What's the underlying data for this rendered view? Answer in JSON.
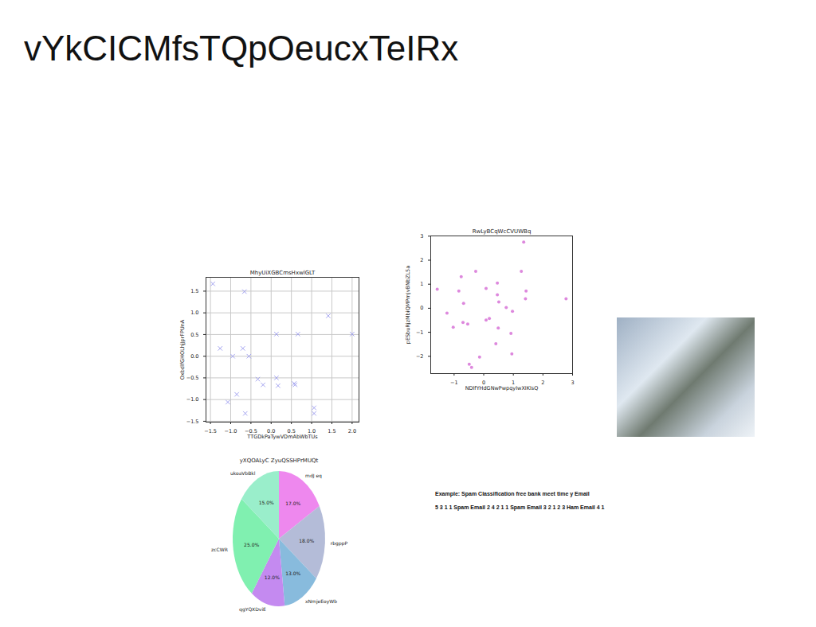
{
  "title": "vYkCICMfsTQpOeucxTeIRx",
  "chart_data": [
    {
      "type": "scatter",
      "title": "MhyUiXGBCmsHxwlGLT",
      "xlabel": "TTGDkPaTywVDmAbWbTUs",
      "ylabel": "OxbdlfGHOLhjJprFPUnA",
      "x": [
        -1.44,
        -1.26,
        -1.07,
        -0.95,
        -0.85,
        -0.7,
        -0.66,
        -0.64,
        -0.55,
        -0.33,
        -0.2,
        0.13,
        0.13,
        0.17,
        0.57,
        0.59,
        0.66,
        1.06,
        1.06,
        1.41,
        2.0
      ],
      "values": [
        1.67,
        0.18,
        -1.06,
        0.0,
        -0.88,
        0.18,
        1.49,
        -1.32,
        0.0,
        -0.53,
        -0.66,
        0.51,
        -0.5,
        -0.68,
        -0.63,
        -0.66,
        0.51,
        -1.19,
        -1.32,
        0.93,
        0.51
      ],
      "color": "#9a9aee",
      "marker": "x",
      "xlim": [
        -1.61,
        2.17
      ],
      "xticks": [
        {
          "value": -1.5,
          "label": "−1.5"
        },
        {
          "value": -1.0,
          "label": "−1.0"
        },
        {
          "value": -0.5,
          "label": "−0.5"
        },
        {
          "value": 0,
          "label": "0.0"
        },
        {
          "value": 0.5,
          "label": "0.5"
        },
        {
          "value": 1.0,
          "label": "1.0"
        },
        {
          "value": 1.5,
          "label": "1.5"
        },
        {
          "value": 2.0,
          "label": "2.0"
        }
      ],
      "ylim": [
        -1.52,
        1.82
      ],
      "yticks": [
        {
          "value": -1.5,
          "label": "−1.5"
        },
        {
          "value": -1.0,
          "label": "−1.0"
        },
        {
          "value": -0.5,
          "label": "−0.5"
        },
        {
          "value": 0,
          "label": "0.0"
        },
        {
          "value": 0.5,
          "label": "0.5"
        },
        {
          "value": 1.0,
          "label": "1.0"
        },
        {
          "value": 1.5,
          "label": "1.5"
        }
      ],
      "grid": true
    },
    {
      "type": "scatter",
      "title": "RwLyBCqWcCVUWBq",
      "xlabel": "NDlfYHdGNwPwpqyIwXIKlsQ",
      "ylabel": "pESbuRjzMbiQMPrnJvBNbZL5a",
      "x": [
        -1.57,
        -1.24,
        -1.03,
        -0.84,
        -0.76,
        -0.68,
        -0.7,
        -0.54,
        -0.49,
        -0.41,
        -0.27,
        -0.14,
        0.08,
        0.08,
        0.19,
        0.46,
        0.46,
        0.51,
        0.49,
        0.41,
        0.76,
        0.92,
        0.95,
        0.97,
        1.27,
        1.35,
        1.41,
        1.43,
        2.78
      ],
      "values": [
        0.79,
        -0.2,
        -0.79,
        0.72,
        1.31,
        0.2,
        -0.59,
        -0.66,
        -2.33,
        -2.46,
        1.54,
        -2.03,
        0.82,
        -0.49,
        -0.43,
        1.05,
        0.56,
        0.26,
        -0.82,
        -1.48,
        0.03,
        -1.05,
        -1.9,
        -0.13,
        1.54,
        2.75,
        0.39,
        0.72,
        0.39
      ],
      "color": "#dd88dd",
      "marker": "o",
      "xlim": [
        -1.79,
        3.0
      ],
      "xticks": [
        -1,
        0,
        1,
        2,
        3
      ],
      "ylim": [
        -2.72,
        3.01
      ],
      "yticks": [
        -2,
        -1,
        0,
        1,
        2,
        3
      ],
      "grid": false
    },
    {
      "type": "pie",
      "title": "yXQOALyC ZyuQSSHPrMUQt",
      "categories": [
        "mdJ eq",
        "rbgppP",
        "xNmjeEoyWb",
        "qgYQXDviE",
        "zcCWR",
        "ukoaVbBkl"
      ],
      "values": [
        17.0,
        18.0,
        13.0,
        12.0,
        25.0,
        15.0
      ],
      "value_labels": [
        "17.0%",
        "18.0%",
        "13.0%",
        "12.0%",
        "25.0%",
        "15.0%"
      ],
      "colors": [
        "#ee88ee",
        "#b4bcd8",
        "#88bbdd",
        "#c48af0",
        "#80f0b0",
        "#9aeecb"
      ],
      "data_labels": true
    }
  ],
  "text": [
    "Example: Spam Classification free bank meet time y Email",
    "5 3 1 1 Spam Email 2 4 2 1 1 Spam Email 3 2 1 2 3 Ham Email 4 1"
  ]
}
